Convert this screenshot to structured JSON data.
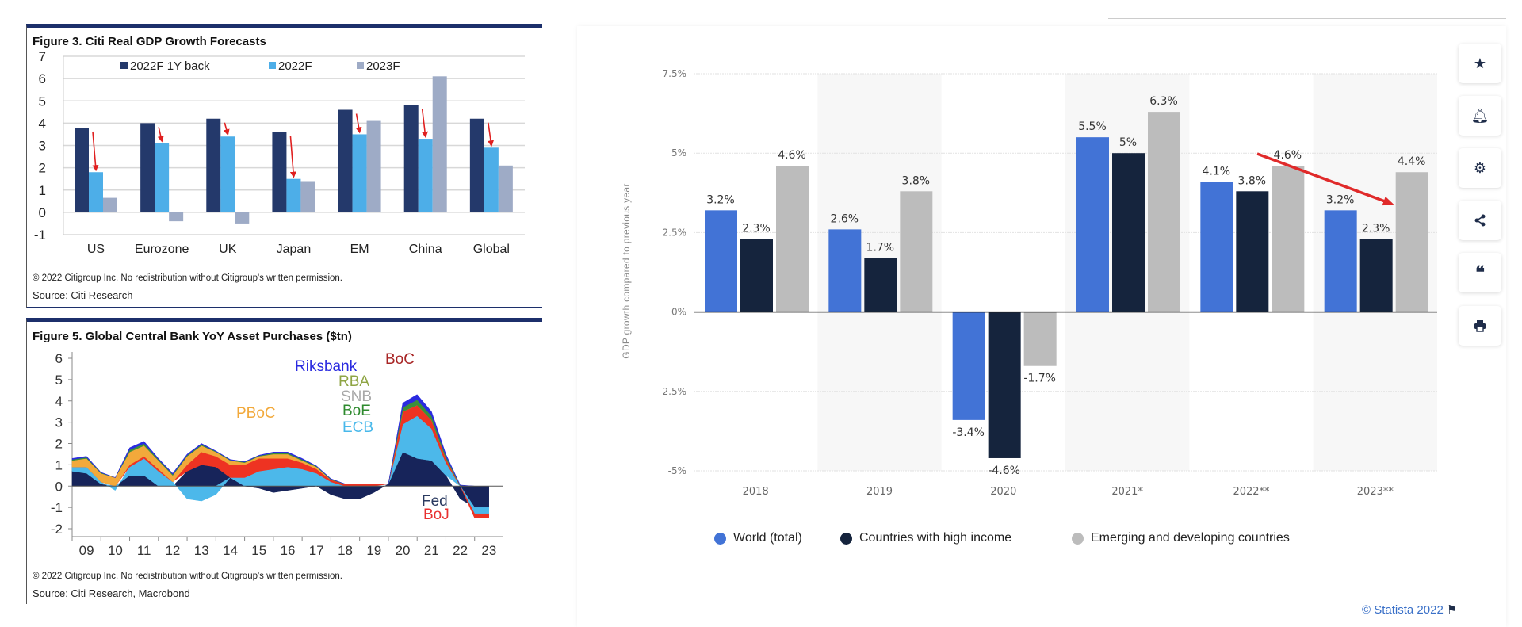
{
  "figure3": {
    "title": "Figure 3. Citi Real GDP Growth Forecasts",
    "copyright": "© 2022 Citigroup Inc. No redistribution without Citigroup's written permission.",
    "source": "Source: Citi Research"
  },
  "figure5": {
    "title": "Figure 5. Global Central Bank YoY Asset Purchases ($tn)",
    "copyright": "© 2022 Citigroup Inc. No redistribution without Citigroup's written permission.",
    "source": "Source: Citi Research, Macrobond",
    "labels": {
      "Riksbank": "Riksbank",
      "BoC": "BoC",
      "RBA": "RBA",
      "SNB": "SNB",
      "BoE": "BoE",
      "ECB": "ECB",
      "PBoC": "PBoC",
      "Fed": "Fed",
      "BoJ": "BoJ"
    }
  },
  "statista": {
    "y_axis_label": "GDP growth compared to previous year",
    "credit": "© Statista 2022",
    "legend": [
      "World (total)",
      "Countries with high income",
      "Emerging and developing countries"
    ],
    "toolbar_icons": [
      "star-icon",
      "bell-icon",
      "gear-icon",
      "share-icon",
      "quote-icon",
      "print-icon"
    ]
  },
  "chart_data": [
    {
      "type": "bar",
      "title": "Figure 3. Citi Real GDP Growth Forecasts",
      "categories": [
        "US",
        "Eurozone",
        "UK",
        "Japan",
        "EM",
        "China",
        "Global"
      ],
      "series": [
        {
          "name": "2022F 1Y back",
          "color": "#24396b",
          "values": [
            3.8,
            4.0,
            4.2,
            3.6,
            4.6,
            4.8,
            4.2
          ]
        },
        {
          "name": "2022F",
          "color": "#4daee8",
          "values": [
            1.8,
            3.1,
            3.4,
            1.5,
            3.5,
            3.3,
            2.9
          ]
        },
        {
          "name": "2023F",
          "color": "#9eabc6",
          "values": [
            0.65,
            -0.4,
            -0.5,
            1.4,
            4.1,
            6.1,
            2.1
          ]
        }
      ],
      "ylim": [
        -1,
        7
      ],
      "yticks": [
        -1,
        0,
        1,
        2,
        3,
        4,
        5,
        6,
        7
      ],
      "grid": true,
      "legend_position": "top",
      "annotations": "red arrows from 2022F 1Y back to 2022F in each category"
    },
    {
      "type": "area",
      "stacked": true,
      "title": "Figure 5. Global Central Bank YoY Asset Purchases ($tn)",
      "x": [
        2009,
        2009.5,
        2010,
        2010.5,
        2011,
        2011.5,
        2012,
        2012.5,
        2013,
        2013.5,
        2014,
        2014.5,
        2015,
        2015.5,
        2016,
        2016.5,
        2017,
        2017.5,
        2018,
        2018.5,
        2019,
        2019.5,
        2020,
        2020.5,
        2021,
        2021.5,
        2022,
        2022.5,
        2023
      ],
      "xtick_labels": [
        "09",
        "10",
        "11",
        "12",
        "13",
        "14",
        "15",
        "16",
        "17",
        "18",
        "19",
        "20",
        "21",
        "22",
        "23"
      ],
      "series": [
        {
          "name": "Fed",
          "color": "#17245a",
          "values": [
            0.7,
            0.6,
            0.1,
            0,
            0.5,
            0.5,
            0,
            0,
            0.7,
            1.0,
            0.9,
            0.4,
            0,
            -0.1,
            -0.3,
            -0.2,
            -0.1,
            0,
            -0.4,
            -0.6,
            -0.6,
            -0.3,
            0.1,
            1.6,
            1.3,
            1.2,
            0.5,
            -0.6,
            -1.0
          ]
        },
        {
          "name": "ECB",
          "color": "#4cb8ea",
          "values": [
            0.2,
            0.3,
            0.1,
            -0.2,
            0.4,
            0.8,
            0.7,
            0.2,
            -0.6,
            -0.7,
            -0.4,
            0,
            0.4,
            0.7,
            0.8,
            0.9,
            0.8,
            0.6,
            0.2,
            0,
            0,
            0,
            0,
            1.3,
            2.0,
            1.5,
            0.6,
            0,
            -0.3
          ]
        },
        {
          "name": "BoJ",
          "color": "#ee3322",
          "values": [
            0,
            0,
            0,
            0,
            0.1,
            0.1,
            0.1,
            0,
            0.3,
            0.6,
            0.5,
            0.6,
            0.6,
            0.6,
            0.5,
            0.4,
            0.3,
            0.2,
            0.1,
            0.1,
            0.1,
            0.1,
            0,
            0.6,
            0.5,
            0.4,
            0.2,
            0,
            -0.2
          ]
        },
        {
          "name": "PBoC",
          "color": "#f2a93b",
          "values": [
            0.3,
            0.4,
            0.4,
            0.4,
            0.6,
            0.5,
            0.4,
            0.3,
            0.4,
            0.3,
            0.2,
            0.2,
            0.1,
            0.1,
            0.2,
            0.2,
            0.1,
            0.1,
            0,
            0,
            0,
            0,
            0,
            0,
            0,
            0,
            0,
            0,
            0
          ]
        },
        {
          "name": "BoE",
          "color": "#3a8f3a",
          "values": [
            0.05,
            0.05,
            0.03,
            0,
            0.1,
            0.1,
            0.05,
            0.05,
            0.05,
            0.05,
            0.03,
            0.03,
            0.03,
            0.03,
            0.05,
            0.05,
            0.05,
            0.03,
            0.03,
            0,
            0,
            0,
            0,
            0.2,
            0.25,
            0.2,
            0.1,
            0.03,
            0
          ]
        },
        {
          "name": "Riksbank",
          "color": "#2a2ae0",
          "values": [
            0.05,
            0.05,
            0.02,
            0,
            0.1,
            0.1,
            0.05,
            0.05,
            0.05,
            0.05,
            0.02,
            0.02,
            0.02,
            0.02,
            0.05,
            0.05,
            0.05,
            0.02,
            0.02,
            0,
            0,
            0,
            0,
            0.2,
            0.25,
            0.2,
            0.1,
            0.02,
            0
          ]
        }
      ],
      "ylim": [
        -2,
        6
      ],
      "yticks": [
        -2,
        -1,
        0,
        1,
        2,
        3,
        4,
        5,
        6
      ],
      "grid": false
    },
    {
      "type": "bar",
      "categories": [
        "2018",
        "2019",
        "2020",
        "2021*",
        "2022**",
        "2023**"
      ],
      "series": [
        {
          "name": "World (total)",
          "color": "#4273d6",
          "values": [
            3.2,
            2.6,
            -3.4,
            5.5,
            4.1,
            3.2
          ],
          "labels": [
            "3.2%",
            "2.6%",
            "-3.4%",
            "5.5%",
            "4.1%",
            "3.2%"
          ]
        },
        {
          "name": "Countries with high income",
          "color": "#15243d",
          "values": [
            2.3,
            1.7,
            -4.6,
            5,
            3.8,
            2.3
          ],
          "labels": [
            "2.3%",
            "1.7%",
            "-4.6%",
            "5%",
            "3.8%",
            "2.3%"
          ]
        },
        {
          "name": "Emerging and developing countries",
          "color": "#bcbcbc",
          "values": [
            4.6,
            3.8,
            -1.7,
            6.3,
            4.6,
            4.4
          ],
          "labels": [
            "4.6%",
            "3.8%",
            "-1.7%",
            "6.3%",
            "4.6%",
            "4.4%"
          ]
        }
      ],
      "ylabel": "GDP growth compared to previous year",
      "ylim": [
        -5,
        7.5
      ],
      "yticks": [
        -5,
        -2.5,
        0,
        2.5,
        5,
        7.5
      ],
      "ytick_labels": [
        "-5%",
        "-2.5%",
        "0%",
        "2.5%",
        "5%",
        "7.5%"
      ],
      "grid": true,
      "legend_position": "bottom",
      "annotations": "red arrow from 2022** to 2023** emerging bar"
    }
  ]
}
